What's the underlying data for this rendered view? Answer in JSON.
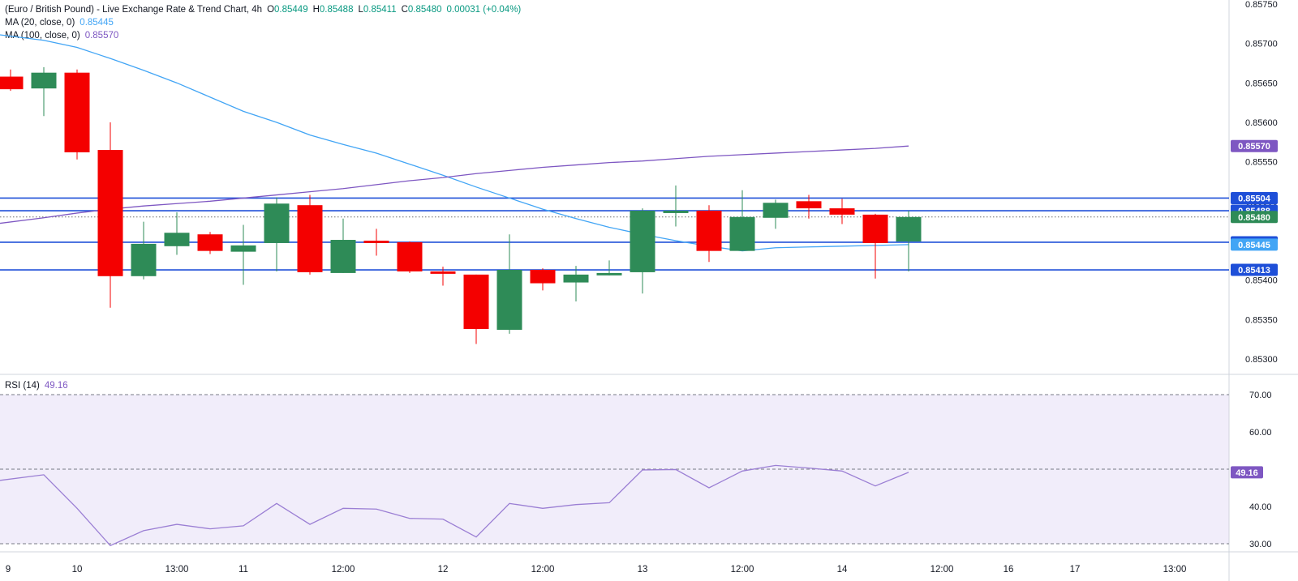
{
  "header": {
    "title": "(Euro / British Pound) - Live Exchange Rate & Trend Chart, 4h",
    "o_label": "O",
    "o_value": "0.85449",
    "h_label": "H",
    "h_value": "0.85488",
    "l_label": "L",
    "l_value": "0.85411",
    "c_label": "C",
    "c_value": "0.85480",
    "change": "0.00031 (+0.04%)",
    "ma20_label": "MA (20, close, 0)",
    "ma20_value": "0.85445",
    "ma100_label": "MA (100, close, 0)",
    "ma100_value": "0.85570",
    "rsi_label": "RSI (14)",
    "rsi_value": "49.16"
  },
  "colors": {
    "up": "#2e8b57",
    "down": "#f40000",
    "ma20": "#42a5f5",
    "ma100": "#7e57c2",
    "hline": "#1e4fd8",
    "rsi_line": "#9b7fd4",
    "rsi_bg": "#f1edfa"
  },
  "chart_data": [
    {
      "type": "candlestick",
      "title": "(Euro / British Pound) - Live Exchange Rate & Trend Chart, 4h",
      "y_ticks": [
        "0.85300",
        "0.85350",
        "0.85400",
        "0.85450",
        "0.85500",
        "0.85550",
        "0.85600",
        "0.85650",
        "0.85700",
        "0.85750"
      ],
      "ylim": [
        0.8528,
        0.85755
      ],
      "x_ticks": [
        {
          "i": 0,
          "label": "9"
        },
        {
          "i": 2,
          "label": "10"
        },
        {
          "i": 5,
          "label": "13:00"
        },
        {
          "i": 7,
          "label": "11"
        },
        {
          "i": 10,
          "label": "12:00"
        },
        {
          "i": 13,
          "label": "12"
        },
        {
          "i": 16,
          "label": "12:00"
        },
        {
          "i": 19,
          "label": "13"
        },
        {
          "i": 22,
          "label": "12:00"
        },
        {
          "i": 25,
          "label": "14"
        },
        {
          "i": 28,
          "label": "12:00"
        },
        {
          "i": 30,
          "label": "16"
        },
        {
          "i": 32,
          "label": "17"
        },
        {
          "i": 35,
          "label": "13:00"
        }
      ],
      "candles": [
        {
          "o": 0.85658,
          "h": 0.85667,
          "l": 0.8564,
          "c": 0.85642
        },
        {
          "o": 0.85643,
          "h": 0.8567,
          "l": 0.85608,
          "c": 0.85663
        },
        {
          "o": 0.85663,
          "h": 0.85667,
          "l": 0.85553,
          "c": 0.85562
        },
        {
          "o": 0.85565,
          "h": 0.856,
          "l": 0.85365,
          "c": 0.85405
        },
        {
          "o": 0.85405,
          "h": 0.85474,
          "l": 0.85401,
          "c": 0.85446
        },
        {
          "o": 0.85443,
          "h": 0.85486,
          "l": 0.85432,
          "c": 0.8546
        },
        {
          "o": 0.85458,
          "h": 0.85461,
          "l": 0.85433,
          "c": 0.85437
        },
        {
          "o": 0.85436,
          "h": 0.8547,
          "l": 0.85394,
          "c": 0.85444
        },
        {
          "o": 0.85447,
          "h": 0.85505,
          "l": 0.85411,
          "c": 0.85497
        },
        {
          "o": 0.85495,
          "h": 0.85508,
          "l": 0.85407,
          "c": 0.8541
        },
        {
          "o": 0.85409,
          "h": 0.85478,
          "l": 0.85409,
          "c": 0.85451
        },
        {
          "o": 0.8545,
          "h": 0.85465,
          "l": 0.85431,
          "c": 0.85447
        },
        {
          "o": 0.85448,
          "h": 0.85449,
          "l": 0.85409,
          "c": 0.85411
        },
        {
          "o": 0.85411,
          "h": 0.85417,
          "l": 0.85393,
          "c": 0.85408
        },
        {
          "o": 0.85407,
          "h": 0.85407,
          "l": 0.85319,
          "c": 0.85338
        },
        {
          "o": 0.85337,
          "h": 0.85458,
          "l": 0.85332,
          "c": 0.85413
        },
        {
          "o": 0.85413,
          "h": 0.85415,
          "l": 0.85387,
          "c": 0.85396
        },
        {
          "o": 0.85397,
          "h": 0.85418,
          "l": 0.85373,
          "c": 0.85407
        },
        {
          "o": 0.85406,
          "h": 0.85425,
          "l": 0.85406,
          "c": 0.85409
        },
        {
          "o": 0.8541,
          "h": 0.85491,
          "l": 0.85383,
          "c": 0.85488
        },
        {
          "o": 0.85485,
          "h": 0.8552,
          "l": 0.85468,
          "c": 0.85488
        },
        {
          "o": 0.85488,
          "h": 0.85495,
          "l": 0.85423,
          "c": 0.85437
        },
        {
          "o": 0.85437,
          "h": 0.85514,
          "l": 0.85437,
          "c": 0.8548
        },
        {
          "o": 0.85479,
          "h": 0.85502,
          "l": 0.85465,
          "c": 0.85498
        },
        {
          "o": 0.855,
          "h": 0.85508,
          "l": 0.85478,
          "c": 0.85491
        },
        {
          "o": 0.85491,
          "h": 0.85503,
          "l": 0.85471,
          "c": 0.85483
        },
        {
          "o": 0.85483,
          "h": 0.85484,
          "l": 0.85402,
          "c": 0.85447
        },
        {
          "o": 0.85449,
          "h": 0.85488,
          "l": 0.85411,
          "c": 0.8548
        }
      ],
      "ma20": [
        0.85711,
        0.85704,
        0.85695,
        0.85681,
        0.85666,
        0.8565,
        0.85632,
        0.85614,
        0.856,
        0.85584,
        0.85572,
        0.85561,
        0.85547,
        0.85533,
        0.85518,
        0.85504,
        0.8549,
        0.85478,
        0.85467,
        0.85458,
        0.8545,
        0.85443,
        0.85437,
        0.85441,
        0.85442,
        0.85443,
        0.85444,
        0.85445
      ],
      "ma100": [
        0.85472,
        0.85479,
        0.85485,
        0.8549,
        0.85494,
        0.85497,
        0.855,
        0.85504,
        0.85508,
        0.85512,
        0.85516,
        0.85521,
        0.85526,
        0.8553,
        0.85535,
        0.85539,
        0.85543,
        0.85546,
        0.85549,
        0.85551,
        0.85554,
        0.85557,
        0.85559,
        0.85561,
        0.85563,
        0.85565,
        0.85567,
        0.8557
      ],
      "hlines": [
        {
          "value": 0.85504,
          "label": "0.85504",
          "style": "solid"
        },
        {
          "value": 0.85488,
          "label": "0.85488",
          "style": "solid"
        },
        {
          "value": 0.8548,
          "label": "0.85480",
          "style": "dotted"
        },
        {
          "value": 0.85448,
          "label": "0.85448",
          "style": "solid"
        },
        {
          "value": 0.85413,
          "label": "0.85413",
          "style": "solid"
        }
      ],
      "price_labels": [
        {
          "value": 0.8557,
          "label": "0.85570",
          "kind": "ma100"
        },
        {
          "value": 0.85504,
          "label": "0.85504",
          "kind": "hline"
        },
        {
          "value": 0.85488,
          "label": "0.85488",
          "kind": "hline"
        },
        {
          "value": 0.8548,
          "label": "0.85480",
          "kind": "up"
        },
        {
          "value": 0.85448,
          "label": "0.85448",
          "kind": "hline"
        },
        {
          "value": 0.85445,
          "label": "0.85445",
          "kind": "ma20"
        },
        {
          "value": 0.85413,
          "label": "0.85413",
          "kind": "hline"
        }
      ]
    },
    {
      "type": "line",
      "title": "RSI (14)",
      "ylim": [
        28,
        72
      ],
      "y_ticks": [
        "30.00",
        "40.00",
        "60.00",
        "70.00"
      ],
      "bands": {
        "upper": 70,
        "middle": 50,
        "lower": 30
      },
      "values": [
        47.0,
        48.5,
        39.5,
        29.5,
        33.5,
        35.2,
        34.0,
        34.8,
        40.8,
        35.2,
        39.5,
        39.3,
        36.8,
        36.6,
        31.8,
        40.8,
        39.5,
        40.5,
        41.0,
        49.8,
        49.9,
        45.0,
        49.5,
        51.0,
        50.3,
        49.5,
        45.5,
        49.16
      ],
      "last_label": "49.16"
    }
  ]
}
